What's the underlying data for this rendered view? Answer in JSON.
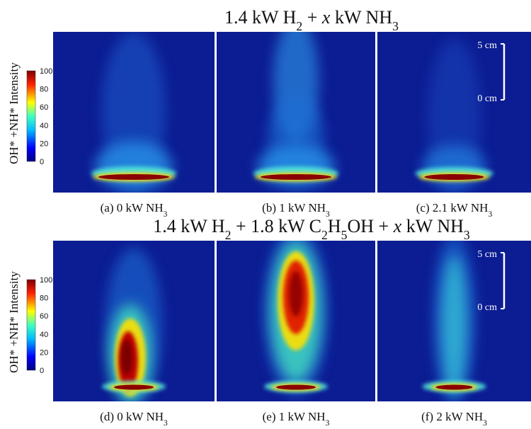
{
  "rows": [
    {
      "title": [
        "1.4 kW H",
        "2",
        " + ",
        "x",
        " kW NH",
        "3"
      ],
      "panels": [
        {
          "caption": [
            "(a) 0 kW NH",
            "3"
          ]
        },
        {
          "caption": [
            "(b) 1 kW NH",
            "3"
          ]
        },
        {
          "caption": [
            "(c) 2.1 kW NH",
            "3"
          ]
        }
      ],
      "scale_bar": {
        "top": "5 cm",
        "bottom": "0 cm"
      }
    },
    {
      "title": [
        "1.4 kW H",
        "2",
        " + 1.8 kW C",
        "2",
        "H",
        "5",
        "OH + ",
        "x",
        " kW NH",
        "3"
      ],
      "panels": [
        {
          "caption": [
            "(d) 0 kW NH",
            "3"
          ]
        },
        {
          "caption": [
            "(e) 1 kW NH",
            "3"
          ]
        },
        {
          "caption": [
            "(f) 2 kW NH",
            "3"
          ]
        }
      ],
      "scale_bar": {
        "top": "5 cm",
        "bottom": "0 cm"
      }
    }
  ],
  "colorbar": {
    "label": "OH* +NH* Intensity",
    "ticks": [
      100,
      80,
      60,
      40,
      20,
      0
    ]
  }
}
